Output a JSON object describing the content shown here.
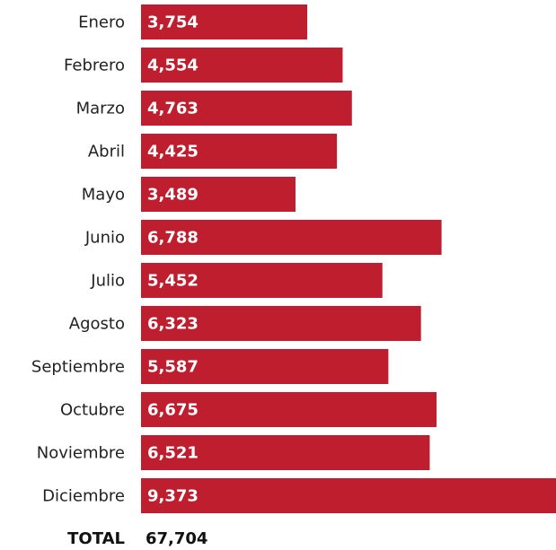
{
  "chart_data": {
    "type": "bar",
    "orientation": "horizontal",
    "categories": [
      "Enero",
      "Febrero",
      "Marzo",
      "Abril",
      "Mayo",
      "Junio",
      "Julio",
      "Agosto",
      "Septiembre",
      "Octubre",
      "Noviembre",
      "Diciembre"
    ],
    "values": [
      3754,
      4554,
      4763,
      4425,
      3489,
      6788,
      5452,
      6323,
      5587,
      6675,
      6521,
      9373
    ],
    "value_labels": [
      "3,754",
      "4,554",
      "4,763",
      "4,425",
      "3,489",
      "6,788",
      "5,452",
      "6,323",
      "5,587",
      "6,675",
      "6,521",
      "9,373"
    ],
    "color": "#be1e2d",
    "total_name": "TOTAL",
    "total": {
      "value": 67704,
      "label": "67,704"
    }
  }
}
